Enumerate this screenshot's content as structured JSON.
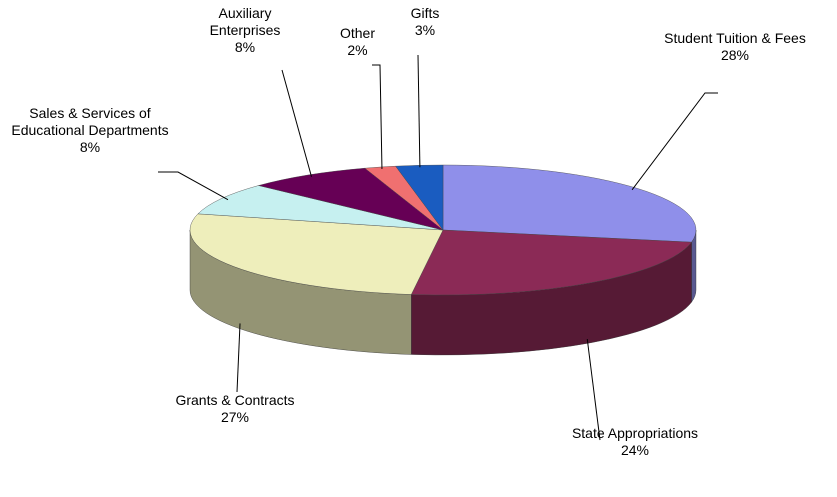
{
  "chart_data": {
    "type": "pie",
    "categories": [
      "Student Tuition & Fees",
      "State Appropriations",
      "Grants & Contracts",
      "Sales & Services of Educational Departments",
      "Auxiliary Enterprises",
      "Other",
      "Gifts"
    ],
    "values": [
      28,
      24,
      27,
      8,
      8,
      2,
      3
    ],
    "value_labels": [
      "28%",
      "24%",
      "27%",
      "8%",
      "8%",
      "2%",
      "3%"
    ],
    "colors": [
      "#8f8fea",
      "#8b2a56",
      "#eeeebb",
      "#c6f0f0",
      "#660055",
      "#f07070",
      "#1a5cc0"
    ]
  }
}
